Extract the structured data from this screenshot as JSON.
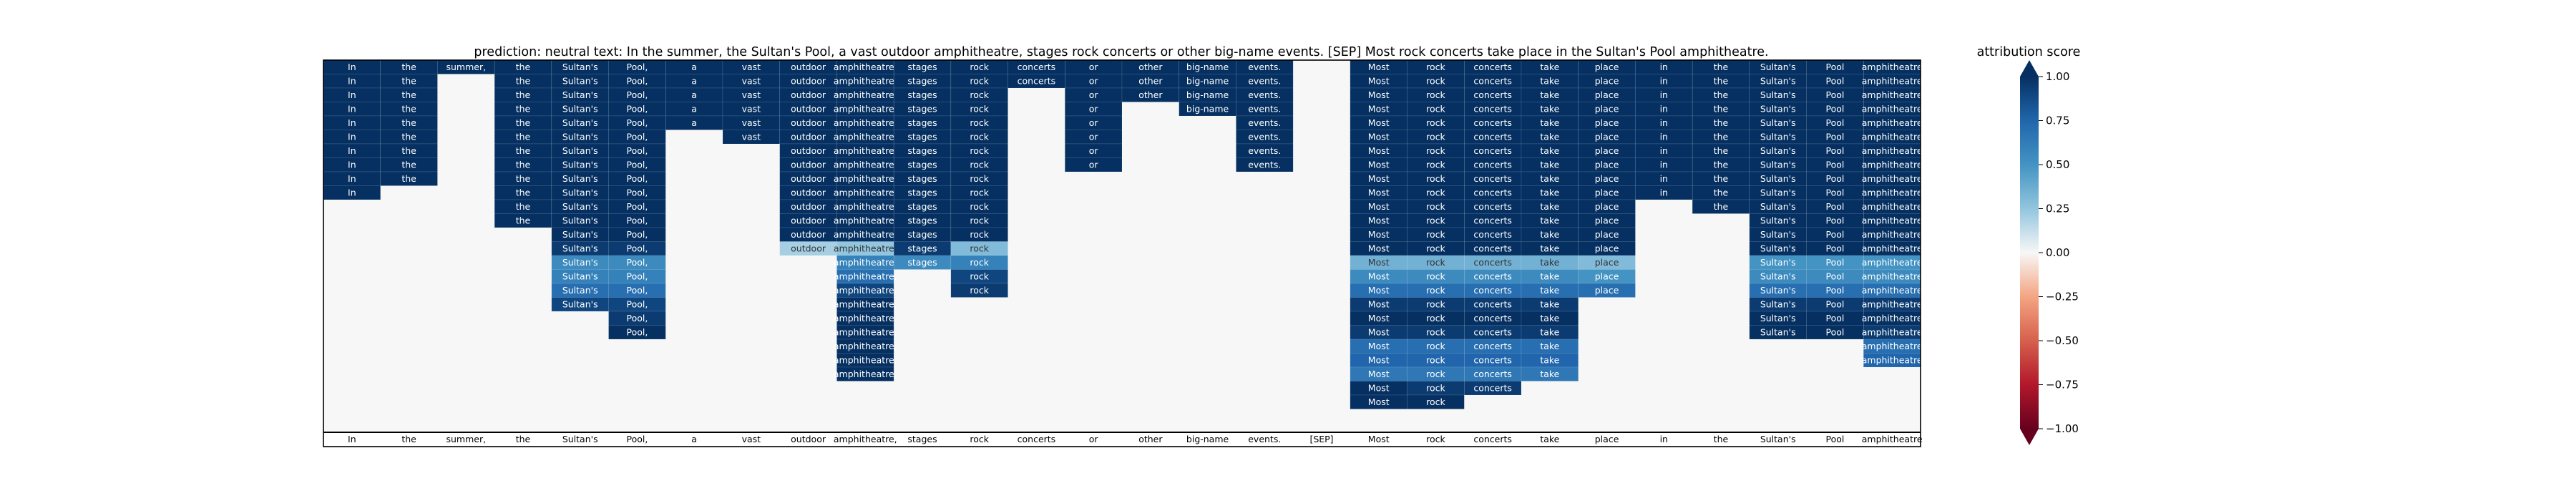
{
  "chart_data": {
    "type": "heatmap",
    "title": "prediction:  neutral     text:  In the summer, the Sultan's Pool, a vast outdoor amphitheatre, stages rock concerts or other big-name events. [SEP] Most rock concerts take place in the Sultan's Pool amphitheatre.",
    "tokens": [
      "In",
      "the",
      "summer,",
      "the",
      "Sultan's",
      "Pool,",
      "a",
      "vast",
      "outdoor",
      "amphitheatre,",
      "stages",
      "rock",
      "concerts",
      "or",
      "other",
      "big-name",
      "events.",
      "[SEP]",
      "Most",
      "rock",
      "concerts",
      "take",
      "place",
      "in",
      "the",
      "Sultan's",
      "Pool",
      "amphitheatre"
    ],
    "layers": 25,
    "columns": [
      [
        1.0,
        1.0,
        1.0,
        1.0,
        1.0,
        1.0,
        1.0,
        1.0,
        1.0,
        1.0
      ],
      [
        1.0,
        1.0,
        1.0,
        1.0,
        1.0,
        1.0,
        1.0,
        1.0,
        1.0
      ],
      [
        1.0
      ],
      [
        1.0,
        1.0,
        1.0,
        1.0,
        1.0,
        1.0,
        1.0,
        1.0,
        1.0,
        1.0,
        1.0,
        1.0
      ],
      [
        1.0,
        1.0,
        1.0,
        1.0,
        1.0,
        1.0,
        1.0,
        1.0,
        1.0,
        1.0,
        1.0,
        1.0,
        1.0,
        0.95,
        0.55,
        0.6,
        0.7,
        0.9
      ],
      [
        1.0,
        1.0,
        1.0,
        1.0,
        1.0,
        1.0,
        1.0,
        1.0,
        1.0,
        1.0,
        1.0,
        1.0,
        1.0,
        0.95,
        0.55,
        0.6,
        0.7,
        0.9,
        0.95,
        1.0
      ],
      [
        1.0,
        1.0,
        1.0,
        1.0,
        1.0
      ],
      [
        1.0,
        1.0,
        1.0,
        1.0,
        1.0,
        1.0
      ],
      [
        1.0,
        1.0,
        1.0,
        1.0,
        1.0,
        1.0,
        1.0,
        1.0,
        1.0,
        1.0,
        1.0,
        1.0,
        1.0,
        0.2
      ],
      [
        1.0,
        1.0,
        1.0,
        1.0,
        1.0,
        1.0,
        1.0,
        1.0,
        1.0,
        1.0,
        1.0,
        1.0,
        1.0,
        0.25,
        0.6,
        0.7,
        0.9,
        1.0,
        1.0,
        1.0,
        1.0,
        1.0,
        1.0
      ],
      [
        1.0,
        1.0,
        1.0,
        1.0,
        1.0,
        1.0,
        1.0,
        1.0,
        1.0,
        1.0,
        1.0,
        1.0,
        1.0,
        0.95,
        0.55
      ],
      [
        1.0,
        1.0,
        1.0,
        1.0,
        1.0,
        1.0,
        1.0,
        1.0,
        1.0,
        1.0,
        1.0,
        1.0,
        1.0,
        0.3,
        0.6,
        0.9,
        0.95
      ],
      [
        1.0,
        1.0
      ],
      [
        1.0,
        1.0,
        1.0,
        1.0,
        1.0,
        1.0,
        1.0,
        1.0
      ],
      [
        1.0,
        1.0,
        1.0
      ],
      [
        1.0,
        1.0,
        1.0,
        1.0
      ],
      [
        1.0,
        1.0,
        1.0,
        1.0,
        1.0,
        1.0,
        1.0,
        1.0
      ],
      [],
      [
        1.0,
        1.0,
        1.0,
        1.0,
        1.0,
        1.0,
        1.0,
        1.0,
        1.0,
        1.0,
        1.0,
        1.0,
        1.0,
        1.0,
        0.35,
        0.55,
        0.7,
        0.95,
        1.0,
        0.95,
        0.7,
        0.75,
        0.65,
        1.0,
        1.0
      ],
      [
        1.0,
        1.0,
        1.0,
        1.0,
        1.0,
        1.0,
        1.0,
        1.0,
        1.0,
        1.0,
        1.0,
        1.0,
        1.0,
        1.0,
        0.35,
        0.55,
        0.7,
        0.95,
        1.0,
        0.95,
        0.7,
        0.75,
        0.65,
        0.95,
        1.0
      ],
      [
        1.0,
        1.0,
        1.0,
        1.0,
        1.0,
        1.0,
        1.0,
        1.0,
        1.0,
        1.0,
        1.0,
        1.0,
        1.0,
        1.0,
        0.35,
        0.55,
        0.7,
        0.95,
        1.0,
        0.95,
        0.7,
        0.75,
        0.65,
        0.95
      ],
      [
        1.0,
        1.0,
        1.0,
        1.0,
        1.0,
        1.0,
        1.0,
        1.0,
        1.0,
        1.0,
        1.0,
        1.0,
        1.0,
        1.0,
        0.35,
        0.55,
        0.7,
        0.95,
        1.0,
        0.95,
        0.7,
        0.75,
        0.65
      ],
      [
        1.0,
        1.0,
        1.0,
        1.0,
        1.0,
        1.0,
        1.0,
        1.0,
        1.0,
        1.0,
        1.0,
        1.0,
        1.0,
        1.0,
        0.3,
        0.5,
        0.7
      ],
      [
        1.0,
        1.0,
        1.0,
        1.0,
        1.0,
        1.0,
        1.0,
        1.0,
        1.0,
        1.0
      ],
      [
        1.0,
        1.0,
        1.0,
        1.0,
        1.0,
        1.0,
        1.0,
        1.0,
        1.0,
        1.0,
        1.0
      ],
      [
        1.0,
        1.0,
        1.0,
        1.0,
        1.0,
        1.0,
        1.0,
        1.0,
        1.0,
        1.0,
        1.0,
        1.0,
        1.0,
        1.0,
        0.5,
        0.55,
        0.7,
        0.95,
        1.0,
        1.0
      ],
      [
        1.0,
        1.0,
        1.0,
        1.0,
        1.0,
        1.0,
        1.0,
        1.0,
        1.0,
        1.0,
        1.0,
        1.0,
        1.0,
        1.0,
        0.5,
        0.55,
        0.7,
        0.95,
        1.0,
        1.0
      ],
      [
        1.0,
        1.0,
        1.0,
        1.0,
        1.0,
        1.0,
        1.0,
        1.0,
        1.0,
        1.0,
        1.0,
        1.0,
        1.0,
        1.0,
        0.5,
        0.55,
        0.7,
        0.95,
        1.0,
        0.95,
        0.7,
        0.75
      ]
    ],
    "background_value": 0.0,
    "colorbar": {
      "label": "attribution score",
      "ticks": [
        "1.00",
        "0.75",
        "0.50",
        "0.25",
        "0.00",
        "−0.25",
        "−0.50",
        "−0.75",
        "−1.00"
      ],
      "range": [
        -1.0,
        1.0
      ],
      "colormap": "RdBu"
    }
  }
}
